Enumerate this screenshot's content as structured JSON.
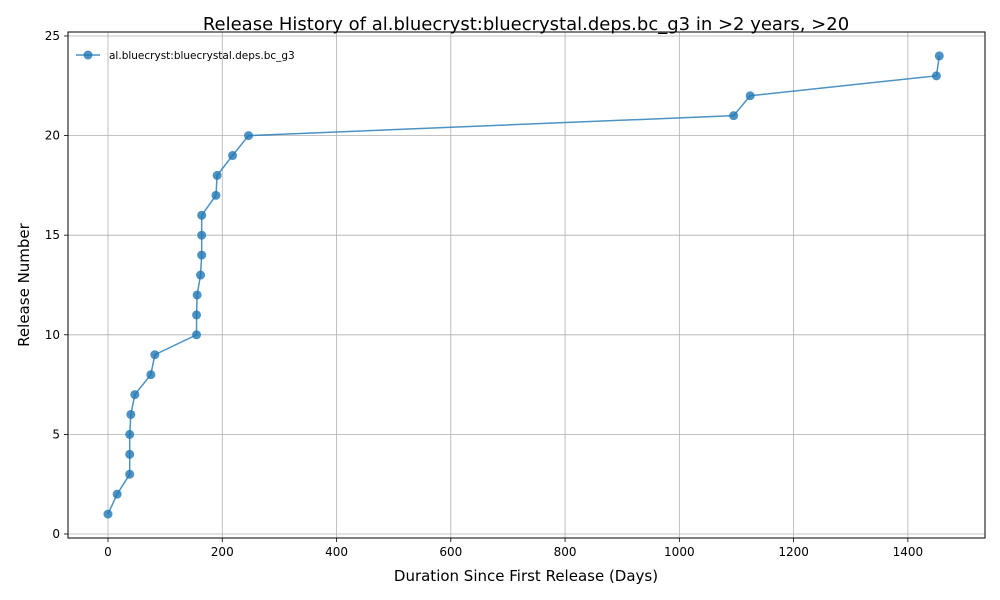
{
  "chart_data": {
    "type": "line",
    "title": "Release History of al.bluecryst:bluecrystal.deps.bc_g3 in >2 years, >20",
    "xlabel": "Duration Since First Release (Days)",
    "ylabel": "Release Number",
    "xlim": [
      -70,
      1535
    ],
    "ylim": [
      -0.2,
      25.2
    ],
    "xticks": [
      0,
      200,
      400,
      600,
      800,
      1000,
      1200,
      1400
    ],
    "yticks": [
      0,
      5,
      10,
      15,
      20,
      25
    ],
    "grid": true,
    "legend_position": "top-left",
    "series": [
      {
        "name": "al.bluecryst:bluecrystal.deps.bc_g3",
        "color": "#1f77b4",
        "x": [
          0,
          16,
          38,
          38,
          38,
          40,
          47,
          75,
          82,
          155,
          155,
          156,
          162,
          164,
          164,
          164,
          189,
          191,
          218,
          246,
          1095,
          1124,
          1450,
          1455
        ],
        "y": [
          1,
          2,
          3,
          4,
          5,
          6,
          7,
          8,
          9,
          10,
          11,
          12,
          13,
          14,
          15,
          16,
          17,
          18,
          19,
          20,
          21,
          22,
          23,
          24
        ]
      }
    ]
  }
}
